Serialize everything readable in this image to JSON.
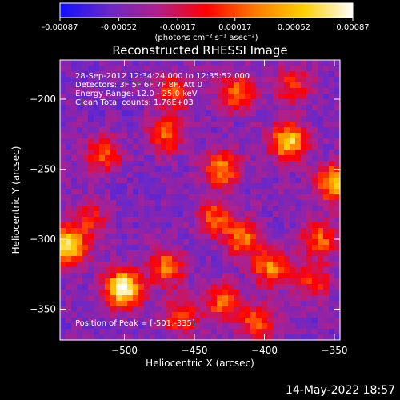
{
  "chart_data": {
    "type": "heatmap",
    "title": "Reconstructed RHESSI Image",
    "xlabel": "Heliocentric X (arcsec)",
    "ylabel": "Heliocentric Y (arcsec)",
    "xlim": [
      -546,
      -346
    ],
    "ylim": [
      -372,
      -172
    ],
    "x_ticks": [
      -500,
      -450,
      -400,
      -350
    ],
    "y_ticks": [
      -200,
      -250,
      -300,
      -350
    ],
    "colorbar": {
      "ticks": [
        "-0.00087",
        "-0.00052",
        "-0.00017",
        "0.00017",
        "0.00052",
        "0.00087"
      ],
      "label": "(photons cm⁻² s⁻¹ asec⁻²)",
      "range": [
        -0.00087,
        0.00087
      ],
      "colors": [
        "#1010ff",
        "#6a28c8",
        "#b0208c",
        "#ff0000",
        "#ff7a00",
        "#ffd000",
        "#ffffff"
      ]
    },
    "annotations": [
      "28-Sep-2012 12:34:24.000 to 12:35:52.000",
      "Detectors: 3F 5F 6F 7F 8F, Att 0",
      "Energy Range: 12.0 - 25.0 keV",
      "Clean    Total counts: 1.76E+03"
    ],
    "peak_text": "Position of Peak = [-501,-335]",
    "peak": [
      -501,
      -335
    ],
    "sources": [
      {
        "x": -501,
        "y": -335,
        "intensity": 1.0
      },
      {
        "x": -540,
        "y": -305,
        "intensity": 0.85
      },
      {
        "x": -383,
        "y": -230,
        "intensity": 0.8
      },
      {
        "x": -350,
        "y": -260,
        "intensity": 0.75
      },
      {
        "x": -470,
        "y": -320,
        "intensity": 0.55
      },
      {
        "x": -430,
        "y": -250,
        "intensity": 0.6
      },
      {
        "x": -435,
        "y": -285,
        "intensity": 0.5
      },
      {
        "x": -415,
        "y": -300,
        "intensity": 0.55
      },
      {
        "x": -395,
        "y": -320,
        "intensity": 0.6
      },
      {
        "x": -420,
        "y": -195,
        "intensity": 0.55
      },
      {
        "x": -465,
        "y": -195,
        "intensity": 0.45
      },
      {
        "x": -470,
        "y": -225,
        "intensity": 0.5
      },
      {
        "x": -515,
        "y": -240,
        "intensity": 0.45
      },
      {
        "x": -430,
        "y": -345,
        "intensity": 0.5
      },
      {
        "x": -405,
        "y": -360,
        "intensity": 0.5
      },
      {
        "x": -460,
        "y": -355,
        "intensity": 0.45
      },
      {
        "x": -360,
        "y": -300,
        "intensity": 0.5
      },
      {
        "x": -365,
        "y": -330,
        "intensity": 0.4
      },
      {
        "x": -525,
        "y": -285,
        "intensity": 0.35
      },
      {
        "x": -380,
        "y": -190,
        "intensity": 0.4
      }
    ],
    "grid": false
  },
  "footer": {
    "date": "14-May-2022 18:57"
  }
}
